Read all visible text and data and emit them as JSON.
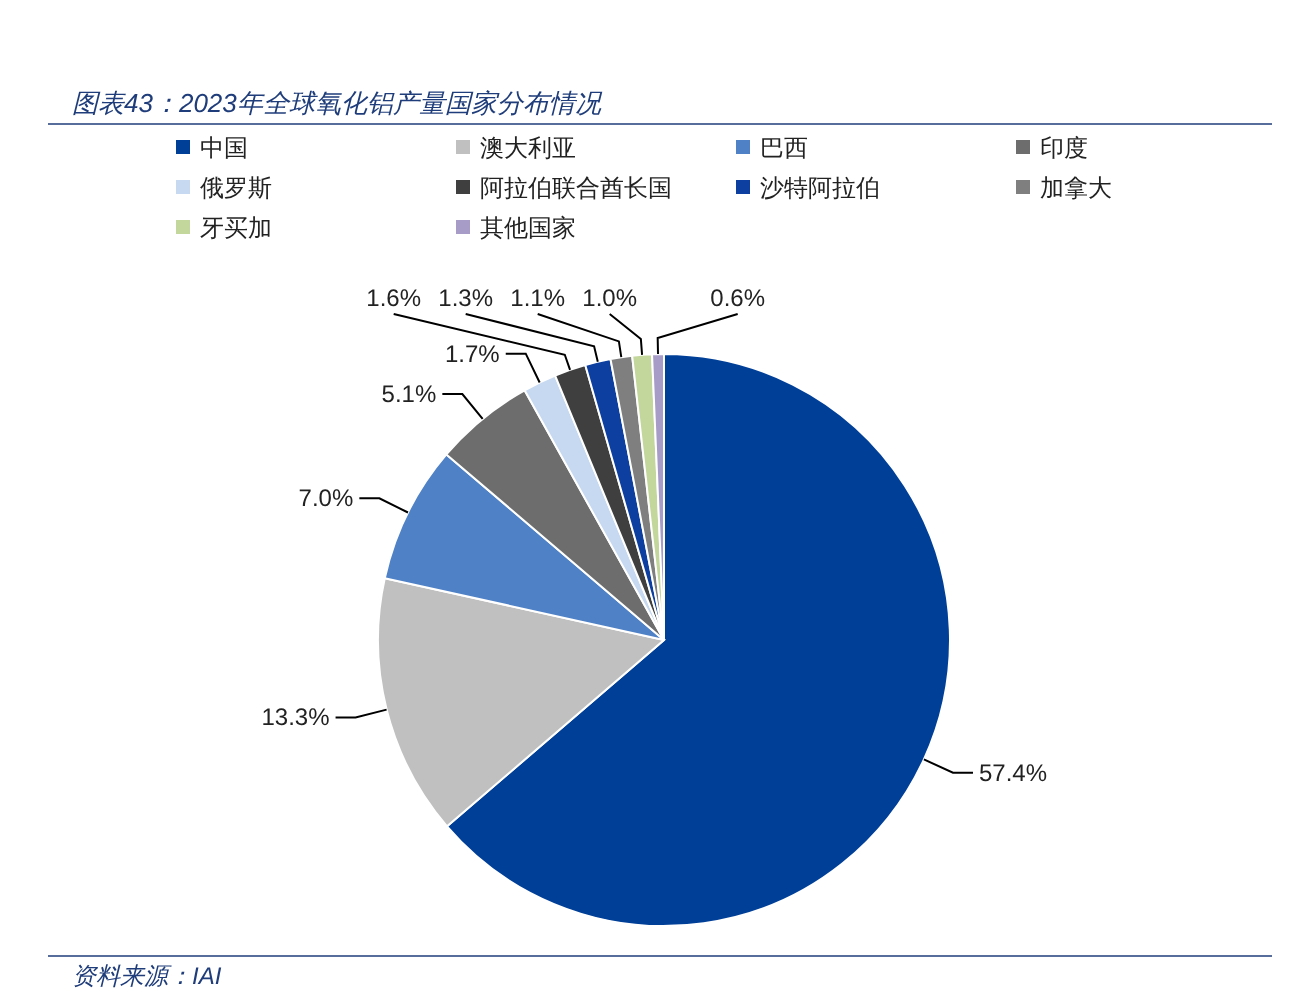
{
  "chart_data": {
    "type": "pie",
    "title": "图表43：2023年全球氧化铝产量国家分布情况",
    "categories": [
      "中国",
      "澳大利亚",
      "巴西",
      "印度",
      "俄罗斯",
      "阿拉伯联合酋长国",
      "沙特阿拉伯",
      "加拿大",
      "牙买加",
      "其他国家"
    ],
    "values": [
      57.4,
      13.3,
      7.0,
      5.1,
      1.7,
      1.6,
      1.3,
      1.1,
      1.0,
      0.6
    ],
    "value_labels": [
      "57.4%",
      "13.3%",
      "7.0%",
      "5.1%",
      "1.7%",
      "1.6%",
      "1.3%",
      "1.1%",
      "1.0%",
      "0.6%"
    ],
    "colors": [
      "#003f98",
      "#c0c0c0",
      "#4f81c7",
      "#6d6d6d",
      "#c6d9f1",
      "#3f3f3f",
      "#0d3fa0",
      "#7f7f7f",
      "#c3d69b",
      "#a79cc7"
    ],
    "legend": "top",
    "annotations": [
      "资料来源：IAI"
    ]
  }
}
